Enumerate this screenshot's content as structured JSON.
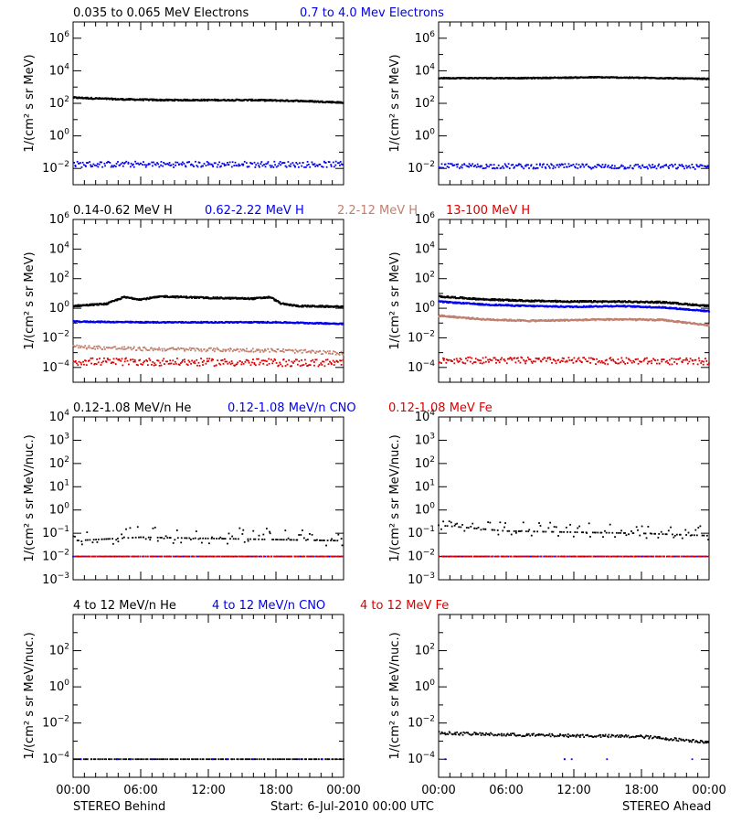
{
  "colors": {
    "black": "#000000",
    "blue": "#0000ee",
    "tan": "#c08070",
    "red": "#dd0000"
  },
  "footer": {
    "behind": "STEREO Behind",
    "start": "Start:  6-Jul-2010 00:00 UTC",
    "ahead": "STEREO Ahead"
  },
  "chart_data": [
    {
      "type": "scatter",
      "panel": "electrons-behind",
      "title": "",
      "legend": [
        {
          "label": "0.035 to 0.065 MeV Electrons",
          "color": "black"
        },
        {
          "label": "0.7 to 4.0 Mev Electrons",
          "color": "blue"
        }
      ],
      "ylabel": "1/(cm² s sr MeV)",
      "yscale": "log",
      "ylim_exp": [
        -3,
        7
      ],
      "yticks_exp": [
        -2,
        0,
        2,
        4,
        6
      ],
      "xlabel": "",
      "xticks": [
        "00:00",
        "06:00",
        "12:00",
        "18:00",
        "00:00"
      ],
      "series": [
        {
          "name": "0.035 to 0.065 MeV Electrons",
          "color": "black",
          "x_hours": [
            0,
            4,
            8,
            12,
            16,
            20,
            24
          ],
          "log10": [
            2.35,
            2.25,
            2.2,
            2.2,
            2.2,
            2.15,
            2.05
          ],
          "scatter": 0.04,
          "style": "line"
        },
        {
          "name": "0.7 to 4.0 Mev Electrons",
          "color": "blue",
          "x_hours": [
            0,
            24
          ],
          "log10": [
            -1.75,
            -1.75
          ],
          "scatter": 0.18,
          "style": "dots"
        }
      ]
    },
    {
      "type": "scatter",
      "panel": "electrons-ahead",
      "title": "",
      "ylabel": "1/(cm² s sr MeV)",
      "yscale": "log",
      "ylim_exp": [
        -3,
        7
      ],
      "yticks_exp": [
        -2,
        0,
        2,
        4,
        6
      ],
      "xticks": [
        "00:00",
        "06:00",
        "12:00",
        "18:00",
        "00:00"
      ],
      "series": [
        {
          "name": "0.035 to 0.065 MeV Electrons",
          "color": "black",
          "x_hours": [
            0,
            8,
            14,
            20,
            24
          ],
          "log10": [
            3.55,
            3.55,
            3.6,
            3.55,
            3.5
          ],
          "scatter": 0.03,
          "style": "line"
        },
        {
          "name": "0.7 to 4.0 Mev Electrons",
          "color": "blue",
          "x_hours": [
            0,
            24
          ],
          "log10": [
            -1.85,
            -1.9
          ],
          "scatter": 0.15,
          "style": "dots"
        }
      ]
    },
    {
      "type": "scatter",
      "panel": "protons-behind",
      "title": "",
      "legend": [
        {
          "label": "0.14-0.62 MeV H",
          "color": "black"
        },
        {
          "label": "0.62-2.22 MeV H",
          "color": "blue"
        },
        {
          "label": "2.2-12 MeV H",
          "color": "tan"
        },
        {
          "label": "13-100 MeV H",
          "color": "red"
        }
      ],
      "ylabel": "1/(cm² s sr MeV)",
      "yscale": "log",
      "ylim_exp": [
        -5,
        6
      ],
      "yticks_exp": [
        -4,
        -2,
        0,
        2,
        4,
        6
      ],
      "xticks": [
        "00:00",
        "06:00",
        "12:00",
        "18:00",
        "00:00"
      ],
      "series": [
        {
          "name": "0.14-0.62 MeV H",
          "color": "black",
          "x_hours": [
            0,
            2,
            3,
            4.5,
            6,
            8,
            12,
            16,
            17.5,
            18.5,
            20,
            24
          ],
          "log10": [
            0.15,
            0.25,
            0.3,
            0.75,
            0.6,
            0.8,
            0.7,
            0.65,
            0.75,
            0.3,
            0.15,
            0.1
          ],
          "scatter": 0.05,
          "style": "line"
        },
        {
          "name": "0.62-2.22 MeV H",
          "color": "blue",
          "x_hours": [
            0,
            6,
            12,
            18,
            24
          ],
          "log10": [
            -0.9,
            -0.95,
            -0.95,
            -0.95,
            -1.05
          ],
          "scatter": 0.04,
          "style": "line"
        },
        {
          "name": "2.2-12 MeV H",
          "color": "tan",
          "x_hours": [
            0,
            6,
            12,
            18,
            24
          ],
          "log10": [
            -2.6,
            -2.75,
            -2.8,
            -2.85,
            -3.05
          ],
          "scatter": 0.12,
          "style": "dots"
        },
        {
          "name": "13-100 MeV H",
          "color": "red",
          "x_hours": [
            0,
            24
          ],
          "log10": [
            -3.6,
            -3.7
          ],
          "scatter": 0.25,
          "style": "dots"
        }
      ]
    },
    {
      "type": "scatter",
      "panel": "protons-ahead",
      "title": "",
      "ylabel": "1/(cm² s sr MeV)",
      "yscale": "log",
      "ylim_exp": [
        -5,
        6
      ],
      "yticks_exp": [
        -4,
        -2,
        0,
        2,
        4,
        6
      ],
      "xticks": [
        "00:00",
        "06:00",
        "12:00",
        "18:00",
        "00:00"
      ],
      "series": [
        {
          "name": "0.14-0.62 MeV H",
          "color": "black",
          "x_hours": [
            0,
            4,
            8,
            12,
            16,
            20,
            24
          ],
          "log10": [
            0.8,
            0.6,
            0.5,
            0.45,
            0.45,
            0.4,
            0.15
          ],
          "scatter": 0.05,
          "style": "line"
        },
        {
          "name": "0.62-2.22 MeV H",
          "color": "blue",
          "x_hours": [
            0,
            4,
            8,
            12,
            16,
            20,
            24
          ],
          "log10": [
            0.45,
            0.25,
            0.15,
            0.1,
            0.15,
            0.05,
            -0.2
          ],
          "scatter": 0.04,
          "style": "line"
        },
        {
          "name": "2.2-12 MeV H",
          "color": "tan",
          "x_hours": [
            0,
            4,
            8,
            12,
            16,
            20,
            24
          ],
          "log10": [
            -0.5,
            -0.75,
            -0.85,
            -0.8,
            -0.75,
            -0.8,
            -1.15
          ],
          "scatter": 0.05,
          "style": "line"
        },
        {
          "name": "13-100 MeV H",
          "color": "red",
          "x_hours": [
            0,
            24
          ],
          "log10": [
            -3.5,
            -3.6
          ],
          "scatter": 0.22,
          "style": "dots"
        }
      ]
    },
    {
      "type": "scatter",
      "panel": "suprathermal-behind",
      "title": "",
      "legend": [
        {
          "label": "0.12-1.08 MeV/n He",
          "color": "black"
        },
        {
          "label": "0.12-1.08 MeV/n CNO",
          "color": "blue"
        },
        {
          "label": "0.12-1.08 MeV Fe",
          "color": "red"
        }
      ],
      "ylabel": "1/(cm² s sr MeV/nuc.)",
      "yscale": "log",
      "ylim_exp": [
        -3,
        4
      ],
      "yticks_exp": [
        -3,
        -2,
        -1,
        0,
        1,
        2,
        3,
        4
      ],
      "xticks": [
        "00:00",
        "06:00",
        "12:00",
        "18:00",
        "00:00"
      ],
      "series": [
        {
          "name": "0.12-1.08 MeV/n He",
          "color": "black",
          "x_hours": [
            0,
            6,
            12,
            18,
            24
          ],
          "log10": [
            -1.2,
            -1.05,
            -1.1,
            -1.15,
            -1.2
          ],
          "scatter": 0.35,
          "style": "sparse"
        },
        {
          "name": "0.12-1.08 MeV/n CNO",
          "color": "blue",
          "x_hours": [
            0,
            24
          ],
          "log10": [
            -2.0,
            -2.0
          ],
          "scatter": 0.0,
          "style": "sparse"
        },
        {
          "name": "0.12-1.08 MeV Fe",
          "color": "red",
          "x_hours": [
            0,
            24
          ],
          "log10": [
            -2.0,
            -2.0
          ],
          "scatter": 0.0,
          "style": "sparse"
        }
      ]
    },
    {
      "type": "scatter",
      "panel": "suprathermal-ahead",
      "title": "",
      "ylabel": "1/(cm² s sr MeV/nuc.)",
      "yscale": "log",
      "ylim_exp": [
        -3,
        4
      ],
      "yticks_exp": [
        -3,
        -2,
        -1,
        0,
        1,
        2,
        3,
        4
      ],
      "xticks": [
        "00:00",
        "06:00",
        "12:00",
        "18:00",
        "00:00"
      ],
      "series": [
        {
          "name": "0.12-1.08 MeV/n He",
          "color": "black",
          "x_hours": [
            0,
            6,
            12,
            18,
            24
          ],
          "log10": [
            -0.55,
            -0.8,
            -0.85,
            -0.9,
            -1.0
          ],
          "scatter": 0.3,
          "style": "sparse"
        },
        {
          "name": "0.12-1.08 MeV/n CNO",
          "color": "blue",
          "x_hours": [
            0,
            24
          ],
          "log10": [
            -2.0,
            -2.0
          ],
          "scatter": 0.0,
          "style": "sparse"
        },
        {
          "name": "0.12-1.08 MeV Fe",
          "color": "red",
          "x_hours": [
            0,
            24
          ],
          "log10": [
            -2.0,
            -2.0
          ],
          "scatter": 0.0,
          "style": "sparse"
        }
      ]
    },
    {
      "type": "scatter",
      "panel": "highenergy-behind",
      "title": "",
      "legend": [
        {
          "label": "4 to 12 MeV/n He",
          "color": "black"
        },
        {
          "label": "4 to 12 MeV/n CNO",
          "color": "blue"
        },
        {
          "label": "4 to 12 MeV Fe",
          "color": "red"
        }
      ],
      "ylabel": "1/(cm² s sr MeV/nuc.)",
      "yscale": "log",
      "ylim_exp": [
        -5,
        4
      ],
      "yticks_exp": [
        -4,
        -2,
        0,
        2
      ],
      "xticks": [
        "00:00",
        "06:00",
        "12:00",
        "18:00",
        "00:00"
      ],
      "series": [
        {
          "name": "4 to 12 MeV/n He",
          "color": "black",
          "x_hours": [
            0,
            24
          ],
          "log10": [
            -4.0,
            -4.0
          ],
          "scatter": 0.0,
          "style": "sparse"
        },
        {
          "name": "4 to 12 MeV/n CNO",
          "color": "blue",
          "x_hours": [
            0,
            24
          ],
          "log10": [
            -4.0,
            -4.0
          ],
          "scatter": 0.0,
          "style": "rare"
        }
      ]
    },
    {
      "type": "scatter",
      "panel": "highenergy-ahead",
      "title": "",
      "ylabel": "1/(cm² s sr MeV/nuc.)",
      "yscale": "log",
      "ylim_exp": [
        -5,
        4
      ],
      "yticks_exp": [
        -4,
        -2,
        0,
        2
      ],
      "xticks": [
        "00:00",
        "06:00",
        "12:00",
        "18:00",
        "00:00"
      ],
      "series": [
        {
          "name": "4 to 12 MeV/n He",
          "color": "black",
          "x_hours": [
            0,
            6,
            12,
            18,
            24
          ],
          "log10": [
            -2.55,
            -2.65,
            -2.7,
            -2.75,
            -3.05
          ],
          "scatter": 0.08,
          "style": "dots"
        },
        {
          "name": "4 to 12 MeV/n CNO",
          "color": "blue",
          "x_hours": [
            0,
            24
          ],
          "log10": [
            -4.0,
            -4.0
          ],
          "scatter": 0.0,
          "style": "rare"
        }
      ]
    }
  ]
}
